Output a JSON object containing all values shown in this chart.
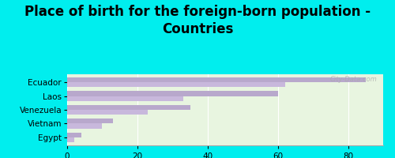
{
  "title": "Place of birth for the foreign-born population -\nCountries",
  "categories": [
    "Ecuador",
    "Laos",
    "Venezuela",
    "Vietnam",
    "Egypt"
  ],
  "values1": [
    85,
    60,
    35,
    13,
    4
  ],
  "values2": [
    62,
    33,
    23,
    10,
    2
  ],
  "bar_color1": "#b8a8cc",
  "bar_color2": "#c8b8dc",
  "background_color": "#00eeee",
  "plot_bg": "#e8f5e0",
  "xlim": [
    0,
    90
  ],
  "xticks": [
    0,
    20,
    40,
    60,
    80
  ],
  "title_fontsize": 12,
  "watermark": "City-Data.com"
}
